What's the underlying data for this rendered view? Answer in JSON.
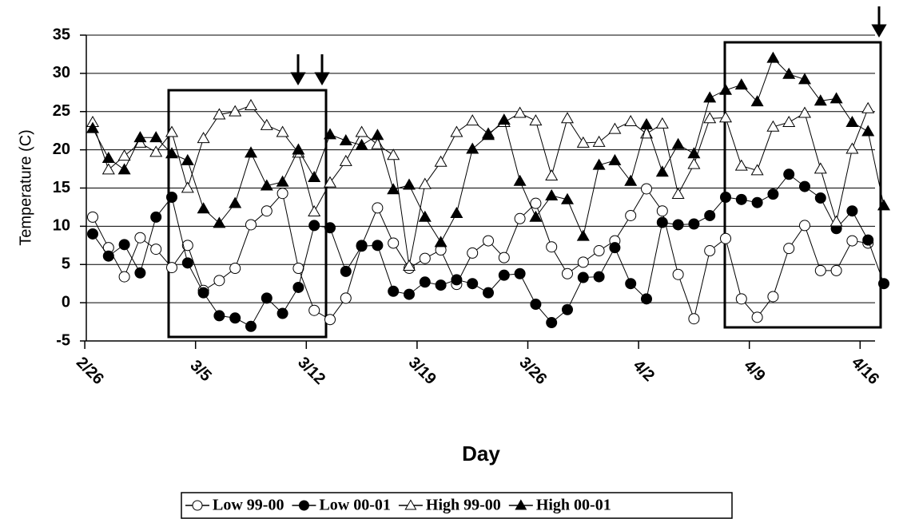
{
  "chart_data": {
    "type": "line",
    "x_label": "Day",
    "y_label": "Temperature (C)",
    "categories": [
      "2/26",
      null,
      null,
      null,
      null,
      null,
      null,
      "3/5",
      null,
      null,
      null,
      null,
      null,
      null,
      "3/12",
      null,
      null,
      null,
      null,
      null,
      null,
      "3/19",
      null,
      null,
      null,
      null,
      null,
      null,
      "3/26",
      null,
      null,
      null,
      null,
      null,
      null,
      "4/2",
      null,
      null,
      null,
      null,
      null,
      null,
      "4/9",
      null,
      null,
      null,
      null,
      null,
      null,
      "4/16",
      null
    ],
    "ylim": [
      -5,
      35
    ],
    "yticks": [
      -5,
      0,
      5,
      10,
      15,
      20,
      25,
      30,
      35
    ],
    "grid": true,
    "series": [
      {
        "name": "Low 99-00",
        "color": "#000000",
        "marker": "circle",
        "filled": false,
        "values": [
          11.2,
          7.2,
          3.4,
          8.5,
          7.0,
          4.6,
          7.5,
          1.6,
          2.9,
          4.5,
          10.2,
          12.0,
          14.3,
          4.5,
          -1.0,
          -2.2,
          0.6,
          7.5,
          12.4,
          7.8,
          4.5,
          5.8,
          6.9,
          2.4,
          6.5,
          8.1,
          5.9,
          11.0,
          13.0,
          7.3,
          3.8,
          5.3,
          6.8,
          8.1,
          11.4,
          14.9,
          12.0,
          3.7,
          -2.1,
          6.8,
          8.4,
          0.5,
          -1.9,
          0.8,
          7.1,
          10.1,
          4.2,
          4.2,
          8.1,
          7.8,
          null
        ]
      },
      {
        "name": "Low 00-01",
        "color": "#000000",
        "marker": "circle",
        "filled": true,
        "values": [
          9.0,
          6.1,
          7.6,
          3.9,
          11.2,
          13.8,
          5.2,
          1.3,
          -1.7,
          -2.0,
          -3.1,
          0.6,
          -1.4,
          2.0,
          10.1,
          9.8,
          4.1,
          7.4,
          7.5,
          1.5,
          1.1,
          2.7,
          2.3,
          3.0,
          2.5,
          1.3,
          3.6,
          3.8,
          -0.2,
          -2.6,
          -0.9,
          3.3,
          3.4,
          7.2,
          2.5,
          0.5,
          10.5,
          10.2,
          10.3,
          11.4,
          13.8,
          13.5,
          13.1,
          14.2,
          16.8,
          15.2,
          13.7,
          9.7,
          12.0,
          8.2,
          2.5
        ]
      },
      {
        "name": "High 99-00",
        "color": "#000000",
        "marker": "triangle",
        "filled": false,
        "values": [
          23.6,
          17.4,
          19.2,
          20.9,
          19.7,
          22.3,
          15.0,
          21.5,
          24.6,
          25.0,
          25.8,
          23.2,
          22.3,
          19.6,
          11.9,
          15.7,
          18.5,
          22.3,
          20.7,
          19.3,
          4.8,
          15.5,
          18.4,
          22.3,
          23.8,
          22.1,
          23.6,
          24.8,
          23.8,
          16.6,
          24.1,
          20.9,
          21.0,
          22.7,
          23.7,
          22.1,
          23.4,
          14.2,
          18.1,
          24.1,
          24.2,
          17.9,
          17.3,
          23.0,
          23.6,
          24.8,
          17.5,
          10.6,
          20.1,
          25.4,
          null
        ]
      },
      {
        "name": "High 00-01",
        "color": "#000000",
        "marker": "triangle",
        "filled": true,
        "values": [
          22.8,
          18.9,
          17.4,
          21.6,
          21.6,
          19.5,
          18.6,
          12.3,
          10.4,
          13.0,
          19.6,
          15.3,
          15.8,
          20.0,
          16.4,
          22.0,
          21.2,
          20.6,
          21.9,
          14.8,
          15.4,
          11.2,
          7.9,
          11.7,
          20.1,
          21.9,
          23.9,
          15.9,
          11.2,
          14.0,
          13.5,
          8.7,
          18.0,
          18.6,
          15.9,
          23.3,
          17.1,
          20.7,
          19.5,
          26.8,
          27.8,
          28.5,
          26.3,
          32.0,
          29.9,
          29.2,
          26.4,
          26.7,
          23.6,
          22.4,
          12.7
        ]
      }
    ]
  }
}
